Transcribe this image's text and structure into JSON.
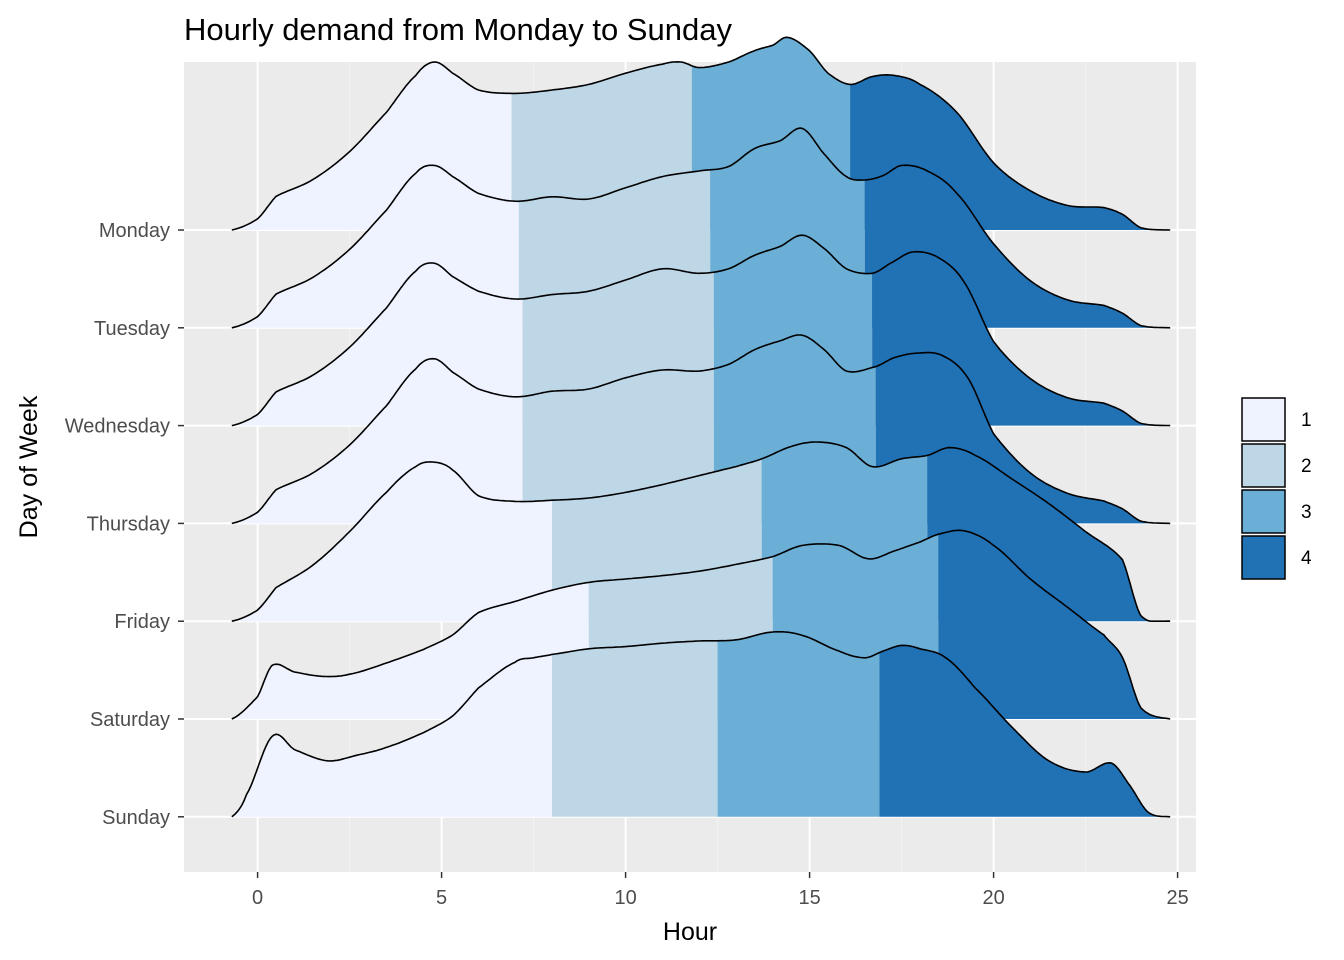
{
  "chart_data": {
    "type": "ridgeline",
    "title": "Hourly demand from Monday to Sunday",
    "xlabel": "Hour",
    "ylabel": "Day of Week",
    "xlim": [
      -2,
      25.5
    ],
    "xticks": [
      0,
      5,
      10,
      15,
      20,
      25
    ],
    "grid": true,
    "legend_position": "right",
    "legend": [
      {
        "label": "1",
        "color": "#eef3ff"
      },
      {
        "label": "2",
        "color": "#bdd7e7"
      },
      {
        "label": "3",
        "color": "#6baed6"
      },
      {
        "label": "4",
        "color": "#2171b5"
      }
    ],
    "series": [
      {
        "name": "Monday",
        "quantile_breaks": [
          6.9,
          11.8,
          16.1
        ],
        "x": [
          -0.7,
          0,
          0.5,
          1.5,
          2.5,
          3.5,
          4.3,
          4.8,
          5.3,
          6,
          7,
          8,
          9,
          10,
          11,
          11.5,
          12,
          12.8,
          13.5,
          14,
          14.4,
          15,
          15.5,
          16.1,
          16.7,
          17.3,
          18,
          19,
          20,
          21,
          22,
          23,
          23.5,
          24,
          24.8
        ],
        "density": [
          0,
          0.1,
          0.3,
          0.45,
          0.7,
          1.05,
          1.38,
          1.5,
          1.4,
          1.25,
          1.22,
          1.25,
          1.3,
          1.4,
          1.48,
          1.5,
          1.45,
          1.5,
          1.6,
          1.65,
          1.72,
          1.6,
          1.4,
          1.3,
          1.37,
          1.38,
          1.3,
          1.05,
          0.6,
          0.35,
          0.22,
          0.2,
          0.14,
          0.02,
          0
        ]
      },
      {
        "name": "Tuesday",
        "quantile_breaks": [
          7.1,
          12.3,
          16.5
        ],
        "x": [
          -0.7,
          0,
          0.5,
          1.5,
          2.5,
          3.5,
          4.3,
          4.8,
          5.3,
          6,
          7,
          8,
          9,
          10,
          11,
          12,
          12.8,
          13.5,
          14.2,
          14.8,
          15.4,
          16,
          16.5,
          17,
          17.5,
          18.2,
          19,
          20,
          21,
          22,
          23,
          23.5,
          24,
          24.8
        ],
        "density": [
          0,
          0.1,
          0.3,
          0.45,
          0.7,
          1.05,
          1.38,
          1.45,
          1.35,
          1.2,
          1.13,
          1.17,
          1.15,
          1.25,
          1.35,
          1.4,
          1.44,
          1.6,
          1.67,
          1.78,
          1.55,
          1.35,
          1.32,
          1.36,
          1.45,
          1.4,
          1.2,
          0.75,
          0.42,
          0.25,
          0.2,
          0.13,
          0.02,
          0
        ]
      },
      {
        "name": "Wednesday",
        "quantile_breaks": [
          7.2,
          12.4,
          16.7
        ],
        "x": [
          -0.7,
          0,
          0.5,
          1.5,
          2.5,
          3.5,
          4.3,
          4.8,
          5.3,
          6,
          7,
          8,
          9,
          10,
          11,
          12,
          12.8,
          13.5,
          14.2,
          14.8,
          15.4,
          16,
          16.7,
          17.2,
          17.8,
          18.5,
          19.2,
          20,
          21,
          22,
          23,
          23.5,
          24,
          24.8
        ],
        "density": [
          0,
          0.1,
          0.3,
          0.45,
          0.7,
          1.05,
          1.38,
          1.45,
          1.33,
          1.2,
          1.13,
          1.17,
          1.2,
          1.3,
          1.4,
          1.36,
          1.4,
          1.52,
          1.6,
          1.7,
          1.58,
          1.4,
          1.36,
          1.45,
          1.55,
          1.5,
          1.28,
          0.75,
          0.42,
          0.25,
          0.2,
          0.13,
          0.02,
          0
        ]
      },
      {
        "name": "Thursday",
        "quantile_breaks": [
          7.2,
          12.4,
          16.8
        ],
        "x": [
          -0.7,
          0,
          0.5,
          1.5,
          2.5,
          3.5,
          4.3,
          4.8,
          5.3,
          6,
          7,
          8,
          9,
          10,
          11,
          12,
          12.8,
          13.5,
          14.2,
          14.8,
          15.4,
          16,
          16.8,
          17.3,
          17.9,
          18.6,
          19.3,
          20,
          21,
          22,
          23,
          23.5,
          24,
          24.8
        ],
        "density": [
          0,
          0.1,
          0.3,
          0.45,
          0.7,
          1.05,
          1.38,
          1.47,
          1.35,
          1.2,
          1.13,
          1.18,
          1.2,
          1.3,
          1.37,
          1.36,
          1.42,
          1.55,
          1.63,
          1.68,
          1.55,
          1.36,
          1.4,
          1.48,
          1.52,
          1.5,
          1.3,
          0.8,
          0.45,
          0.27,
          0.2,
          0.13,
          0.02,
          0
        ]
      },
      {
        "name": "Friday",
        "quantile_breaks": [
          8.0,
          13.7,
          18.2
        ],
        "x": [
          -0.7,
          0,
          0.5,
          1.5,
          2.5,
          3.5,
          4.3,
          4.8,
          5.3,
          6,
          7,
          8,
          9,
          10,
          11,
          12,
          13,
          13.7,
          14.5,
          15.2,
          16,
          16.7,
          17.5,
          18.2,
          18.8,
          19.5,
          20.5,
          21.5,
          22.5,
          23.5,
          24,
          24.8
        ],
        "density": [
          0,
          0.1,
          0.3,
          0.5,
          0.8,
          1.15,
          1.38,
          1.42,
          1.35,
          1.12,
          1.07,
          1.08,
          1.1,
          1.15,
          1.22,
          1.3,
          1.38,
          1.45,
          1.56,
          1.6,
          1.55,
          1.38,
          1.45,
          1.48,
          1.55,
          1.48,
          1.27,
          1.05,
          0.8,
          0.55,
          0.05,
          0
        ]
      },
      {
        "name": "Saturday",
        "quantile_breaks": [
          9.0,
          14.0,
          18.5
        ],
        "x": [
          -0.7,
          0,
          0.4,
          1,
          1.8,
          2.5,
          3.5,
          4.5,
          5.3,
          6,
          7,
          8,
          9,
          10,
          11,
          12,
          13,
          14,
          14.8,
          15.8,
          16.6,
          17.3,
          18,
          18.5,
          19.2,
          20,
          21,
          22,
          23,
          23.5,
          24,
          24.8
        ],
        "density": [
          0,
          0.2,
          0.48,
          0.42,
          0.38,
          0.4,
          0.5,
          0.62,
          0.75,
          0.95,
          1.05,
          1.15,
          1.22,
          1.25,
          1.28,
          1.32,
          1.38,
          1.45,
          1.55,
          1.55,
          1.43,
          1.5,
          1.58,
          1.65,
          1.68,
          1.55,
          1.25,
          1.0,
          0.75,
          0.55,
          0.1,
          0
        ]
      },
      {
        "name": "Sunday",
        "quantile_breaks": [
          8.0,
          12.5,
          16.9
        ],
        "x": [
          -0.7,
          -0.3,
          0.4,
          1,
          1.9,
          2.7,
          3.5,
          4.5,
          5.3,
          6,
          7,
          7.5,
          8,
          9,
          10,
          11,
          12,
          13,
          14,
          14.8,
          15.8,
          16.5,
          17,
          17.5,
          18,
          18.7,
          19.5,
          20.5,
          21.5,
          22.5,
          23.2,
          23.7,
          24.2,
          24.8
        ],
        "density": [
          0,
          0.2,
          0.72,
          0.6,
          0.5,
          0.55,
          0.62,
          0.75,
          0.9,
          1.15,
          1.38,
          1.42,
          1.45,
          1.5,
          1.52,
          1.55,
          1.57,
          1.58,
          1.65,
          1.62,
          1.48,
          1.42,
          1.48,
          1.53,
          1.5,
          1.42,
          1.15,
          0.8,
          0.5,
          0.4,
          0.48,
          0.28,
          0.04,
          0
        ]
      }
    ]
  }
}
